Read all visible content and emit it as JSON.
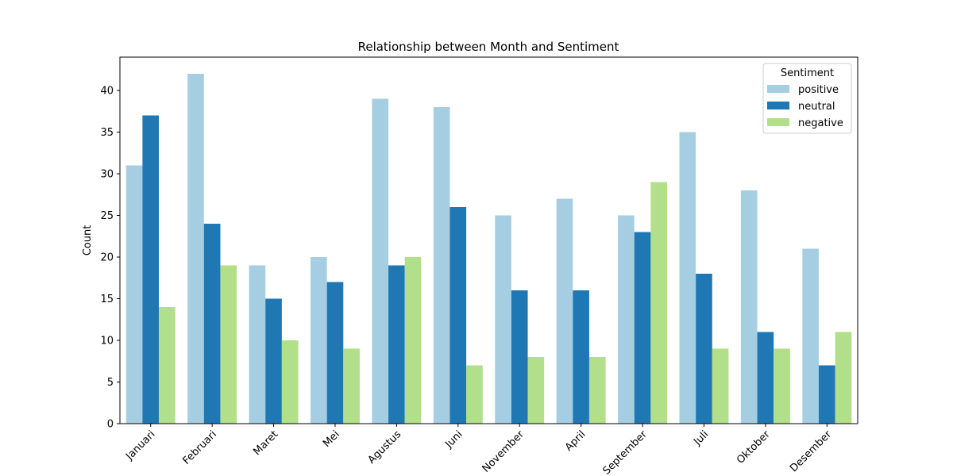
{
  "chart_data": {
    "type": "bar",
    "title": "Relationship between Month and Sentiment",
    "xlabel": "",
    "ylabel": "Count",
    "categories": [
      "Januari",
      "Februari",
      "Maret",
      "Mei",
      "Agustus",
      "Juni",
      "November",
      "April",
      "September",
      "Juli",
      "Oktober",
      "Desember"
    ],
    "series": [
      {
        "name": "positive",
        "color": "#a6cee3",
        "values": [
          31,
          42,
          19,
          20,
          39,
          38,
          25,
          27,
          25,
          35,
          28,
          21
        ]
      },
      {
        "name": "neutral",
        "color": "#1f78b4",
        "values": [
          37,
          24,
          15,
          17,
          19,
          26,
          16,
          16,
          23,
          18,
          11,
          7
        ]
      },
      {
        "name": "negative",
        "color": "#b2df8a",
        "values": [
          14,
          19,
          10,
          9,
          20,
          7,
          8,
          8,
          29,
          9,
          9,
          11
        ]
      }
    ],
    "ylim": [
      0,
      44
    ],
    "yticks": [
      0,
      5,
      10,
      15,
      20,
      25,
      30,
      35,
      40
    ],
    "legend": {
      "title": "Sentiment",
      "placement": "top-right"
    },
    "grid": false
  }
}
